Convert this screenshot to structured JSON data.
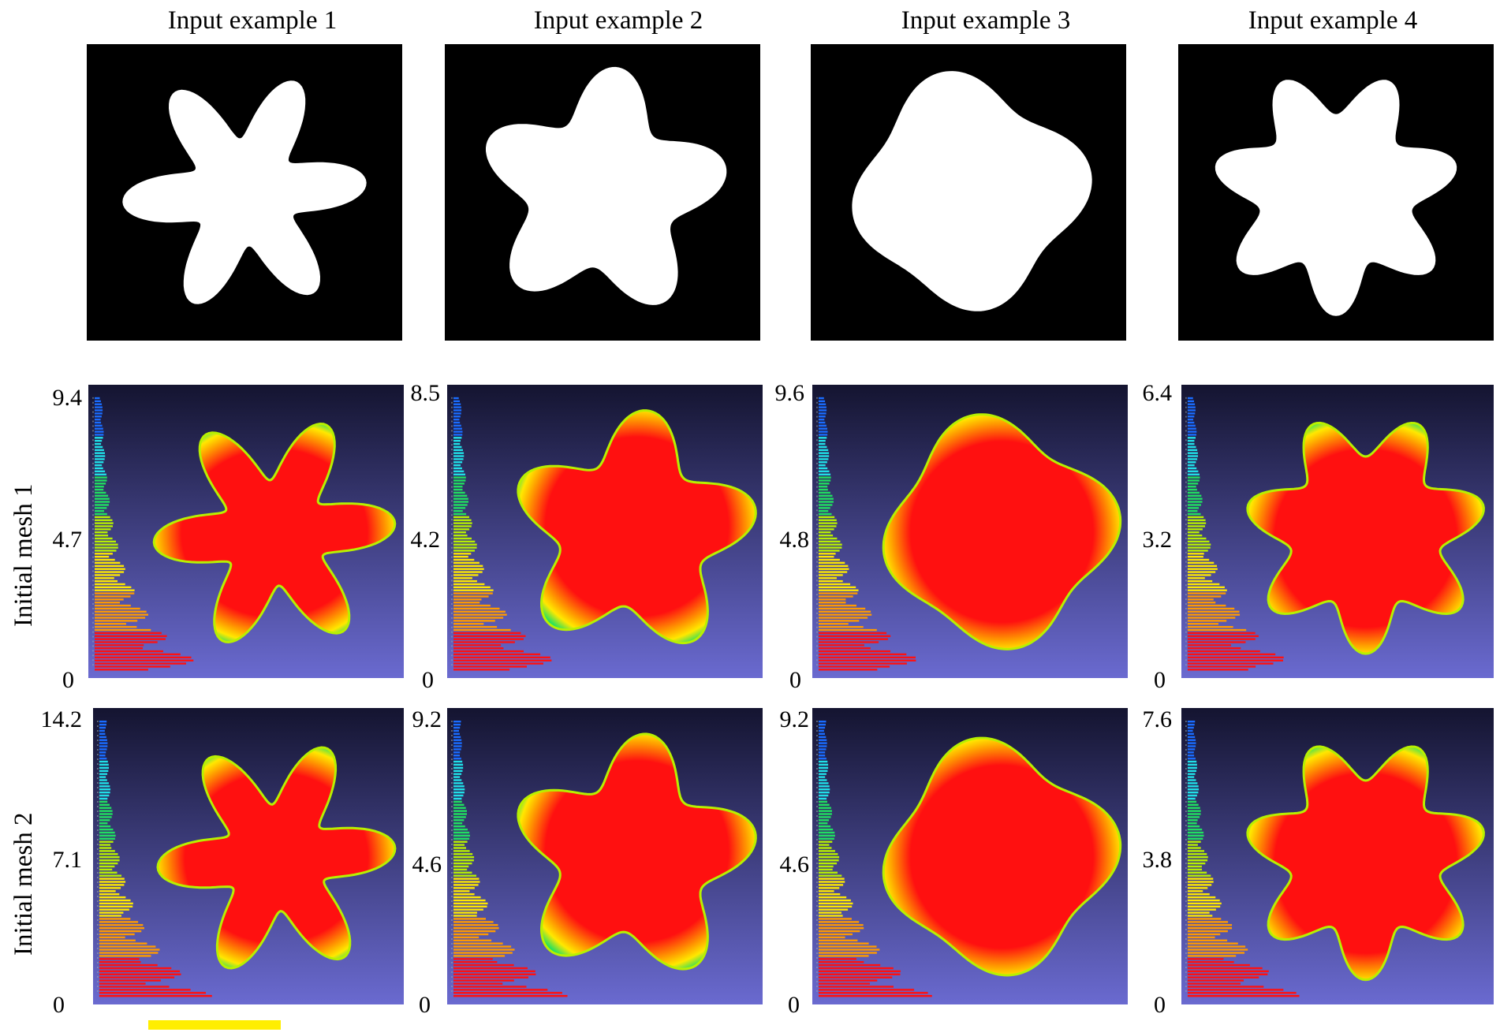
{
  "columns": [
    {
      "title": "Input example 1",
      "shape": "star6"
    },
    {
      "title": "Input example 2",
      "shape": "star5"
    },
    {
      "title": "Input example 3",
      "shape": "blob"
    },
    {
      "title": "Input example 4",
      "shape": "star7"
    }
  ],
  "rows": [
    {
      "label": "Initial mesh 1",
      "scales": [
        {
          "max": "9.4",
          "mid": "4.7",
          "min": "0"
        },
        {
          "max": "8.5",
          "mid": "4.2",
          "min": "0"
        },
        {
          "max": "9.6",
          "mid": "4.8",
          "min": "0"
        },
        {
          "max": "6.4",
          "mid": "3.2",
          "min": "0"
        }
      ]
    },
    {
      "label": "Initial mesh 2",
      "scales": [
        {
          "max": "14.2",
          "mid": "7.1",
          "min": "0"
        },
        {
          "max": "9.2",
          "mid": "4.6",
          "min": "0"
        },
        {
          "max": "9.2",
          "mid": "4.6",
          "min": "0"
        },
        {
          "max": "7.6",
          "mid": "3.8",
          "min": "0"
        }
      ]
    }
  ],
  "colors": {
    "silhouette_background": "#000000",
    "silhouette_fill": "#ffffff",
    "heatmap_background_top": "#141430",
    "heatmap_background_bottom": "#6a6ad0",
    "scale_bar": "#ffee00",
    "colormap": [
      "#ff1010",
      "#ff9a00",
      "#ffe800",
      "#b8f000",
      "#20e060",
      "#20e0e8",
      "#1a6cff"
    ]
  }
}
